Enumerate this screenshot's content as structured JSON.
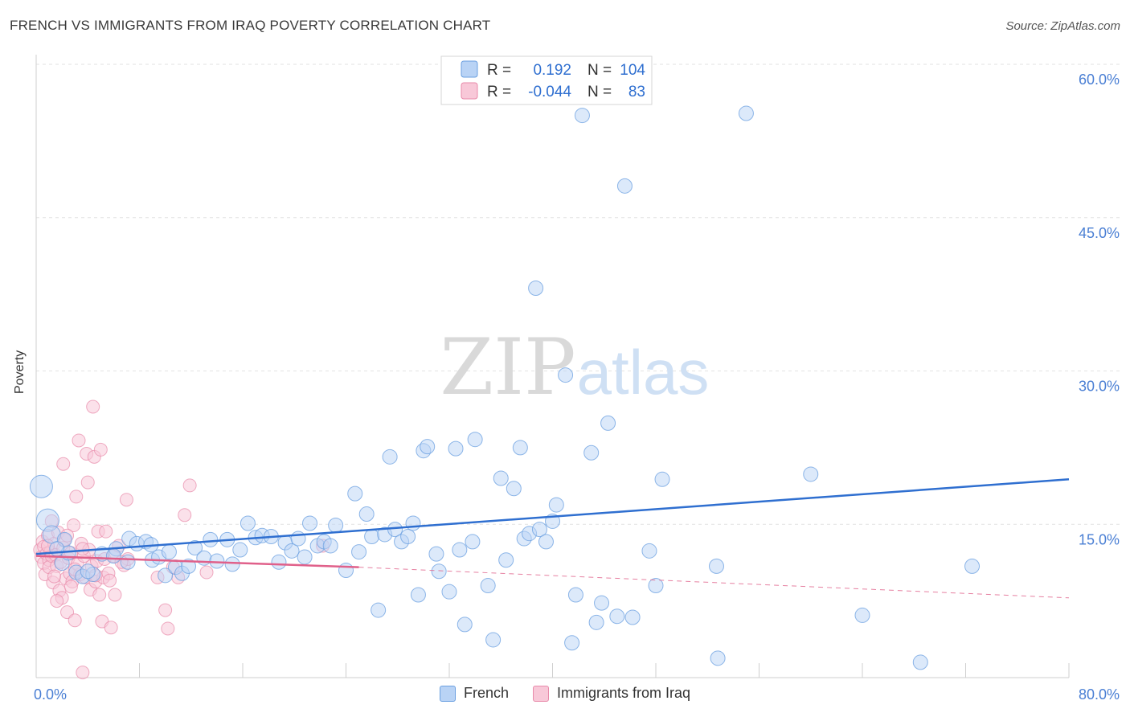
{
  "header": {
    "title": "FRENCH VS IMMIGRANTS FROM IRAQ POVERTY CORRELATION CHART",
    "source": "Source: ZipAtlas.com"
  },
  "watermark": {
    "part1": "ZIP",
    "part2": "atlas"
  },
  "legend_top": {
    "rows": [
      {
        "r_label": "R =",
        "r_value": "0.192",
        "n_label": "N =",
        "n_value": "104"
      },
      {
        "r_label": "R =",
        "r_value": "-0.044",
        "n_label": "N =",
        "n_value": "83"
      }
    ]
  },
  "legend_bottom": {
    "items": [
      "French",
      "Immigrants from Iraq"
    ]
  },
  "colors": {
    "blue": "#6a9fe0",
    "blue_fill": "#b9d3f5",
    "blue_line": "#2f6fd0",
    "pink": "#e88aaa",
    "pink_fill": "#f8c8d8",
    "pink_line": "#e0608a",
    "tick_text": "#4a7fd4"
  },
  "chart_data": {
    "type": "scatter",
    "title": "FRENCH VS IMMIGRANTS FROM IRAQ POVERTY CORRELATION CHART",
    "xlabel": "",
    "ylabel": "Poverty",
    "xlim": [
      0,
      80
    ],
    "ylim": [
      0,
      60
    ],
    "x_tick_labels": [
      "0.0%",
      "80.0%"
    ],
    "y_ticks": [
      15,
      30,
      45,
      60
    ],
    "y_tick_labels": [
      "15.0%",
      "30.0%",
      "45.0%",
      "60.0%"
    ],
    "grid": true,
    "legend_placement": "top-center",
    "series": [
      {
        "name": "French",
        "r": 0.192,
        "n": 104,
        "trend": {
          "x": [
            0,
            80
          ],
          "y": [
            12.1,
            19.4
          ]
        },
        "points": [
          [
            0.4,
            18.7
          ],
          [
            0.9,
            15.4
          ],
          [
            1.2,
            14.0
          ],
          [
            2.0,
            11.2
          ],
          [
            2.5,
            12.2
          ],
          [
            3.1,
            10.3
          ],
          [
            3.6,
            9.9
          ],
          [
            4.4,
            10.1
          ],
          [
            5.1,
            12.1
          ],
          [
            6.2,
            12.6
          ],
          [
            7.1,
            11.3
          ],
          [
            7.2,
            13.6
          ],
          [
            7.8,
            13.1
          ],
          [
            8.5,
            13.3
          ],
          [
            9.0,
            11.5
          ],
          [
            9.5,
            11.8
          ],
          [
            10.0,
            10.0
          ],
          [
            10.3,
            12.3
          ],
          [
            10.8,
            10.8
          ],
          [
            11.3,
            10.2
          ],
          [
            11.8,
            10.9
          ],
          [
            12.3,
            12.7
          ],
          [
            13.0,
            11.7
          ],
          [
            13.5,
            13.5
          ],
          [
            14.0,
            11.4
          ],
          [
            14.8,
            13.5
          ],
          [
            15.2,
            11.1
          ],
          [
            15.8,
            12.5
          ],
          [
            16.4,
            15.1
          ],
          [
            17.0,
            13.7
          ],
          [
            17.5,
            13.9
          ],
          [
            18.2,
            13.8
          ],
          [
            18.8,
            11.3
          ],
          [
            19.3,
            13.2
          ],
          [
            19.8,
            12.4
          ],
          [
            20.3,
            13.6
          ],
          [
            20.8,
            11.8
          ],
          [
            21.2,
            15.1
          ],
          [
            21.8,
            12.9
          ],
          [
            22.3,
            13.3
          ],
          [
            22.8,
            12.9
          ],
          [
            23.2,
            14.9
          ],
          [
            24.0,
            10.5
          ],
          [
            24.7,
            18.0
          ],
          [
            25.0,
            12.3
          ],
          [
            25.6,
            16.0
          ],
          [
            26.0,
            13.8
          ],
          [
            26.5,
            6.6
          ],
          [
            27.0,
            14.0
          ],
          [
            27.4,
            21.6
          ],
          [
            27.8,
            14.5
          ],
          [
            28.3,
            13.3
          ],
          [
            28.8,
            13.8
          ],
          [
            29.2,
            15.1
          ],
          [
            29.6,
            8.1
          ],
          [
            30.0,
            22.2
          ],
          [
            30.3,
            22.6
          ],
          [
            31.0,
            12.1
          ],
          [
            31.2,
            10.4
          ],
          [
            32.0,
            8.4
          ],
          [
            32.5,
            22.4
          ],
          [
            32.8,
            12.5
          ],
          [
            33.2,
            5.2
          ],
          [
            33.8,
            13.3
          ],
          [
            34.0,
            23.3
          ],
          [
            35.0,
            9.0
          ],
          [
            35.4,
            3.7
          ],
          [
            36.0,
            19.5
          ],
          [
            36.4,
            11.5
          ],
          [
            37.0,
            18.5
          ],
          [
            37.5,
            22.5
          ],
          [
            37.8,
            13.6
          ],
          [
            38.2,
            14.1
          ],
          [
            38.7,
            38.1
          ],
          [
            39.0,
            14.5
          ],
          [
            39.5,
            13.3
          ],
          [
            40.0,
            15.3
          ],
          [
            40.3,
            16.9
          ],
          [
            41.0,
            29.6
          ],
          [
            41.5,
            3.4
          ],
          [
            41.8,
            8.1
          ],
          [
            42.3,
            55.0
          ],
          [
            43.0,
            22.0
          ],
          [
            43.4,
            5.4
          ],
          [
            43.8,
            7.3
          ],
          [
            44.3,
            24.9
          ],
          [
            45.0,
            6.0
          ],
          [
            45.6,
            48.1
          ],
          [
            46.2,
            5.9
          ],
          [
            47.5,
            12.4
          ],
          [
            48.0,
            9.0
          ],
          [
            48.5,
            19.4
          ],
          [
            52.7,
            10.9
          ],
          [
            52.8,
            1.9
          ],
          [
            55.0,
            55.2
          ],
          [
            60.0,
            19.9
          ],
          [
            64.0,
            6.1
          ],
          [
            68.5,
            1.5
          ],
          [
            72.5,
            10.9
          ],
          [
            4.0,
            10.4
          ],
          [
            2.2,
            13.5
          ],
          [
            6.0,
            11.9
          ],
          [
            8.9,
            13.0
          ],
          [
            1.6,
            12.6
          ]
        ]
      },
      {
        "name": "Immigrants from Iraq",
        "r": -0.044,
        "n": 83,
        "trend": {
          "x": [
            0,
            25
          ],
          "y": [
            11.9,
            10.8
          ]
        },
        "trend_extended": {
          "x": [
            25,
            80
          ],
          "y": [
            10.8,
            7.8
          ]
        },
        "points": [
          [
            0.3,
            12.5
          ],
          [
            0.4,
            11.8
          ],
          [
            0.5,
            13.3
          ],
          [
            0.6,
            12.8
          ],
          [
            0.6,
            11.2
          ],
          [
            0.7,
            10.1
          ],
          [
            0.8,
            12.1
          ],
          [
            0.9,
            13.9
          ],
          [
            1.0,
            11.5
          ],
          [
            1.0,
            10.8
          ],
          [
            1.1,
            12.3
          ],
          [
            1.2,
            15.3
          ],
          [
            1.2,
            11.9
          ],
          [
            1.3,
            9.3
          ],
          [
            1.4,
            13.1
          ],
          [
            1.5,
            12.0
          ],
          [
            1.6,
            10.9
          ],
          [
            1.7,
            14.2
          ],
          [
            1.8,
            8.5
          ],
          [
            1.9,
            11.3
          ],
          [
            2.0,
            7.8
          ],
          [
            2.1,
            12.7
          ],
          [
            2.1,
            20.9
          ],
          [
            2.2,
            13.5
          ],
          [
            2.3,
            9.7
          ],
          [
            2.4,
            6.4
          ],
          [
            2.5,
            11.7
          ],
          [
            2.6,
            10.2
          ],
          [
            2.7,
            12.2
          ],
          [
            2.8,
            9.4
          ],
          [
            2.9,
            14.9
          ],
          [
            3.0,
            5.6
          ],
          [
            3.1,
            17.7
          ],
          [
            3.2,
            11.1
          ],
          [
            3.3,
            23.2
          ],
          [
            3.4,
            10.1
          ],
          [
            3.5,
            13.1
          ],
          [
            3.6,
            0.5
          ],
          [
            3.7,
            11.9
          ],
          [
            3.8,
            9.8
          ],
          [
            3.9,
            21.9
          ],
          [
            4.0,
            19.1
          ],
          [
            4.1,
            12.5
          ],
          [
            4.2,
            8.6
          ],
          [
            4.3,
            10.9
          ],
          [
            4.4,
            26.5
          ],
          [
            4.5,
            21.6
          ],
          [
            4.6,
            9.4
          ],
          [
            4.7,
            11.4
          ],
          [
            4.8,
            14.3
          ],
          [
            4.9,
            8.1
          ],
          [
            5.0,
            22.3
          ],
          [
            5.1,
            5.5
          ],
          [
            5.2,
            9.8
          ],
          [
            5.3,
            11.6
          ],
          [
            5.4,
            14.3
          ],
          [
            5.6,
            10.2
          ],
          [
            5.8,
            4.9
          ],
          [
            6.0,
            11.9
          ],
          [
            6.1,
            8.1
          ],
          [
            6.4,
            12.9
          ],
          [
            6.8,
            11.0
          ],
          [
            7.0,
            17.4
          ],
          [
            7.1,
            11.6
          ],
          [
            9.4,
            9.8
          ],
          [
            10.0,
            6.6
          ],
          [
            10.2,
            4.8
          ],
          [
            11.0,
            9.8
          ],
          [
            11.5,
            15.9
          ],
          [
            11.9,
            18.8
          ],
          [
            13.2,
            10.3
          ],
          [
            22.2,
            12.9
          ],
          [
            1.6,
            7.5
          ],
          [
            2.4,
            13.9
          ],
          [
            3.0,
            10.6
          ],
          [
            4.6,
            10.0
          ],
          [
            0.9,
            12.9
          ],
          [
            1.4,
            9.9
          ],
          [
            2.7,
            8.9
          ],
          [
            3.6,
            12.6
          ],
          [
            5.7,
            9.5
          ],
          [
            6.6,
            11.3
          ],
          [
            10.6,
            10.8
          ]
        ]
      }
    ]
  }
}
